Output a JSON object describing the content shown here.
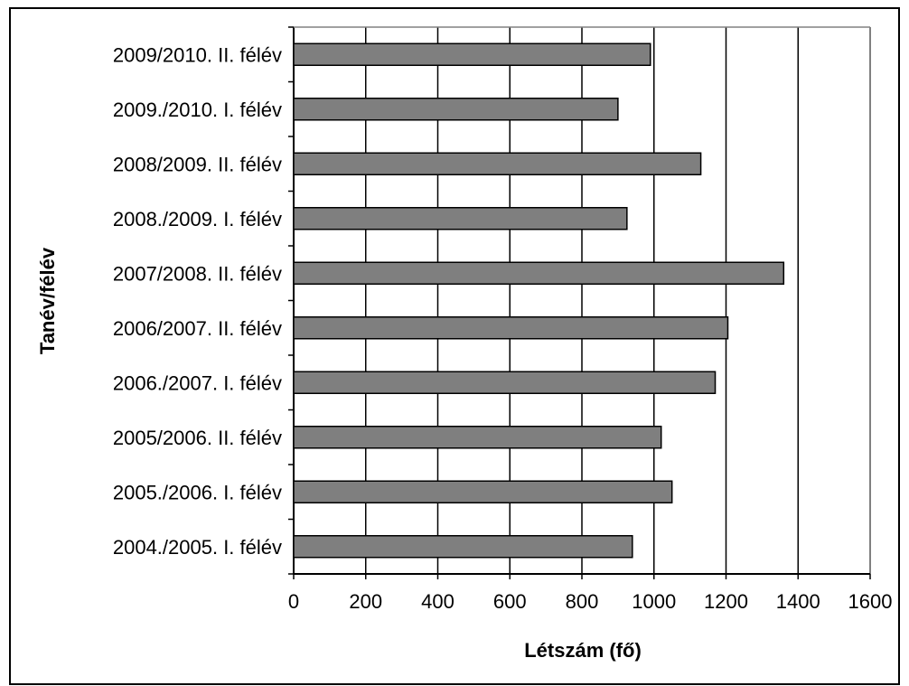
{
  "chart_data": {
    "type": "bar",
    "orientation": "horizontal",
    "categories": [
      "2009/2010. II. félév",
      "2009./2010. I. félév",
      "2008/2009. II. félév",
      "2008./2009. I. félév",
      "2007/2008. II. félév",
      "2006/2007. II. félév",
      "2006./2007. I. félév",
      "2005/2006. II. félév",
      "2005./2006. I. félév",
      "2004./2005. I. félév"
    ],
    "values": [
      990,
      900,
      1130,
      925,
      1360,
      1205,
      1170,
      1020,
      1050,
      940
    ],
    "xlabel": "Létszám (fő)",
    "ylabel": "Tanév/félév",
    "xlim": [
      0,
      1600
    ],
    "xticks": [
      "0",
      "200",
      "400",
      "600",
      "800",
      "1000",
      "1200",
      "1400",
      "1600"
    ],
    "grid": "vertical",
    "bar_color": "#7f7f7f"
  }
}
